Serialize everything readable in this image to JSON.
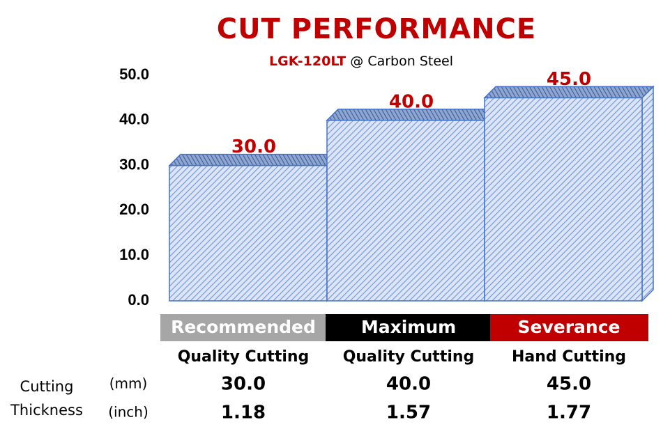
{
  "chart_data": {
    "type": "bar",
    "title": "CUT PERFORMANCE",
    "subtitle_model": "LGK-120LT",
    "subtitle_material": "@ Carbon Steel",
    "categories": [
      "Recommended",
      "Maximum",
      "Severance"
    ],
    "category_colors": [
      "#a6a6a6",
      "#000000",
      "#c00000"
    ],
    "subcategories": [
      "Quality Cutting",
      "Quality Cutting",
      "Hand Cutting"
    ],
    "values": [
      30,
      40,
      45
    ],
    "value_labels": [
      "30.0",
      "40.0",
      "45.0"
    ],
    "color": "#4472c4",
    "ylim": [
      0,
      50
    ],
    "yticks": [
      {
        "value": 0,
        "label": "0.0"
      },
      {
        "value": 10,
        "label": "10.0"
      },
      {
        "value": 20,
        "label": "20.0"
      },
      {
        "value": 30,
        "label": "30.0"
      },
      {
        "value": 40,
        "label": "40.0"
      },
      {
        "value": 50,
        "label": "50.0"
      }
    ]
  },
  "table": {
    "row_label": [
      "Cutting",
      "Thickness"
    ],
    "rows": [
      {
        "unit": "(mm)",
        "cells": [
          "30.0",
          "40.0",
          "45.0"
        ]
      },
      {
        "unit": "(inch)",
        "cells": [
          "1.18",
          "1.57",
          "1.77"
        ]
      }
    ]
  }
}
